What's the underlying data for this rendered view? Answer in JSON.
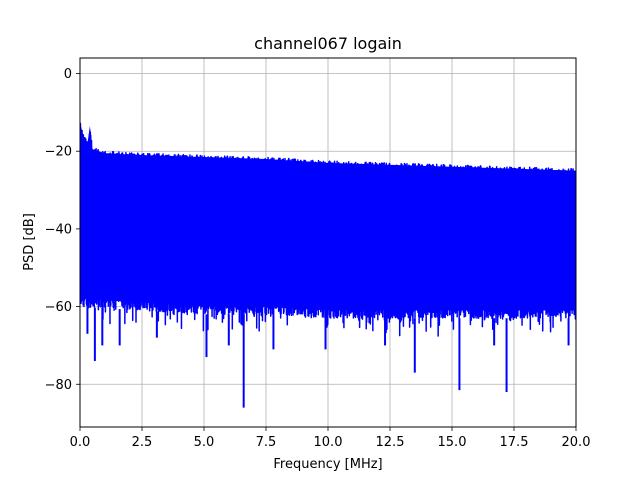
{
  "chart_data": {
    "type": "line",
    "title": "channel067 logain",
    "xlabel": "Frequency [MHz]",
    "ylabel": "PSD [dB]",
    "xlim": [
      0,
      20
    ],
    "ylim": [
      -91,
      4
    ],
    "x_ticks": [
      0.0,
      2.5,
      5.0,
      7.5,
      10.0,
      12.5,
      15.0,
      17.5,
      20.0
    ],
    "x_tick_labels": [
      "0.0",
      "2.5",
      "5.0",
      "7.5",
      "10.0",
      "12.5",
      "15.0",
      "17.5",
      "20.0"
    ],
    "y_ticks": [
      0,
      -20,
      -40,
      -60,
      -80
    ],
    "y_tick_labels": [
      "0",
      "−20",
      "−40",
      "−60",
      "−80"
    ],
    "grid": true,
    "series": [
      {
        "color": "#0000ff",
        "upper_envelope": [
          {
            "x": 0.0,
            "y": -12
          },
          {
            "x": 0.15,
            "y": -16
          },
          {
            "x": 0.35,
            "y": -18
          },
          {
            "x": 0.4,
            "y": -13
          },
          {
            "x": 0.5,
            "y": -19
          },
          {
            "x": 1.0,
            "y": -20
          },
          {
            "x": 2.5,
            "y": -20.5
          },
          {
            "x": 5.0,
            "y": -21
          },
          {
            "x": 7.5,
            "y": -21.5
          },
          {
            "x": 10.0,
            "y": -22.5
          },
          {
            "x": 12.5,
            "y": -23
          },
          {
            "x": 15.0,
            "y": -23.5
          },
          {
            "x": 17.5,
            "y": -24
          },
          {
            "x": 20.0,
            "y": -24.5
          }
        ],
        "lower_envelope": [
          {
            "x": 0.0,
            "y": -60
          },
          {
            "x": 2.5,
            "y": -61
          },
          {
            "x": 5.0,
            "y": -62
          },
          {
            "x": 7.5,
            "y": -62
          },
          {
            "x": 10.0,
            "y": -63
          },
          {
            "x": 12.5,
            "y": -63
          },
          {
            "x": 15.0,
            "y": -63
          },
          {
            "x": 17.5,
            "y": -63
          },
          {
            "x": 20.0,
            "y": -63
          }
        ],
        "notable_minima": [
          {
            "x": 0.3,
            "y": -67
          },
          {
            "x": 0.6,
            "y": -74
          },
          {
            "x": 0.9,
            "y": -70
          },
          {
            "x": 1.6,
            "y": -70
          },
          {
            "x": 3.1,
            "y": -68
          },
          {
            "x": 5.1,
            "y": -73
          },
          {
            "x": 6.0,
            "y": -70
          },
          {
            "x": 6.6,
            "y": -86
          },
          {
            "x": 7.8,
            "y": -71
          },
          {
            "x": 9.9,
            "y": -71
          },
          {
            "x": 12.3,
            "y": -70
          },
          {
            "x": 13.5,
            "y": -77
          },
          {
            "x": 15.3,
            "y": -81.5
          },
          {
            "x": 16.7,
            "y": -70
          },
          {
            "x": 17.2,
            "y": -82
          },
          {
            "x": 19.7,
            "y": -70
          }
        ]
      }
    ]
  }
}
